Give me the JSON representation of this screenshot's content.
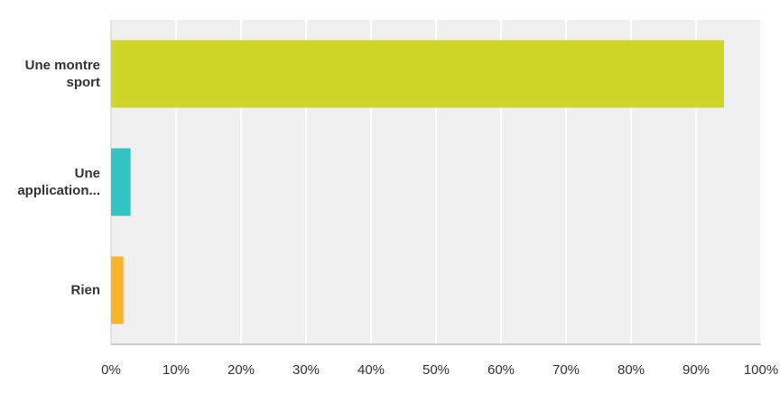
{
  "chart_data": {
    "type": "bar",
    "orientation": "horizontal",
    "categories": [
      "Une montre sport",
      "Une application...",
      "Rien"
    ],
    "values": [
      94.3,
      3.0,
      1.9
    ],
    "colors": [
      "#d0d52a",
      "#35c2c2",
      "#f8b42b"
    ],
    "xlim": [
      0,
      100
    ],
    "xticks": [
      {
        "value": 0,
        "label": "0%"
      },
      {
        "value": 10,
        "label": "10%"
      },
      {
        "value": 20,
        "label": "20%"
      },
      {
        "value": 30,
        "label": "30%"
      },
      {
        "value": 40,
        "label": "40%"
      },
      {
        "value": 50,
        "label": "50%"
      },
      {
        "value": 60,
        "label": "60%"
      },
      {
        "value": 70,
        "label": "70%"
      },
      {
        "value": 80,
        "label": "80%"
      },
      {
        "value": 90,
        "label": "90%"
      },
      {
        "value": 100,
        "label": "100%"
      }
    ],
    "grid": true
  }
}
